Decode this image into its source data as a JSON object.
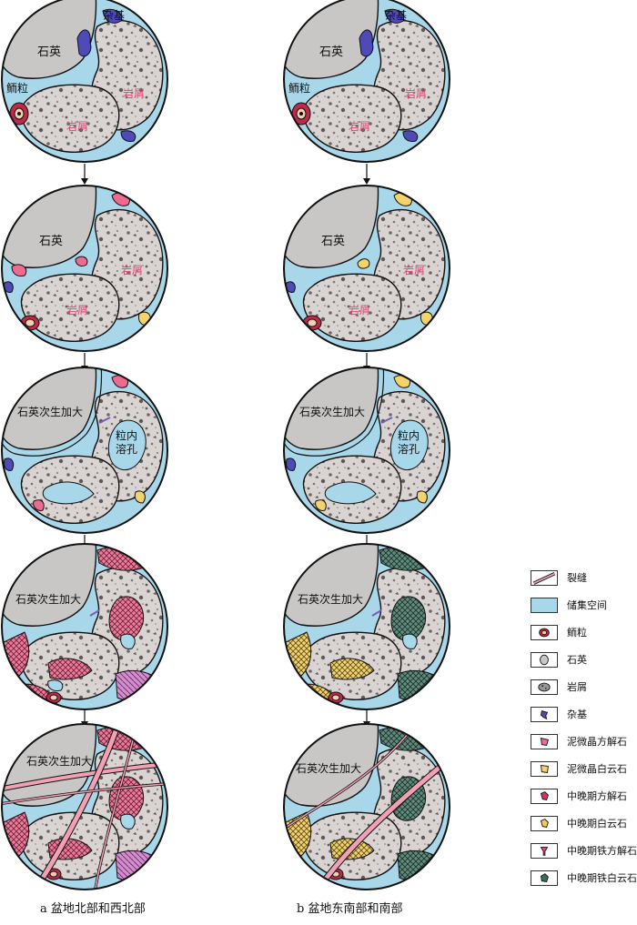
{
  "labels": {
    "quartz": "石英",
    "matrix": "杂基",
    "ooid": "鲕粒",
    "rock_fragment": "岩屑",
    "overgrowth": "石英次生加大",
    "dissolution_pore": "粒内\n溶孔"
  },
  "captions": {
    "left": "a 盆地北部和西北部",
    "right": "b 盆地东南部和南部"
  },
  "legend": [
    {
      "label": "裂缝",
      "swatch": "fracture",
      "color": "#f2a0b4"
    },
    {
      "label": "储集空间",
      "swatch": "pore",
      "color": "#a9d7ea"
    },
    {
      "label": "鲕粒",
      "swatch": "ooid",
      "color": "#b5294a"
    },
    {
      "label": "石英",
      "swatch": "quartz",
      "color": "#c9c6c6"
    },
    {
      "label": "岩屑",
      "swatch": "fragment",
      "color": "#9a9696"
    },
    {
      "label": "杂基",
      "swatch": "matrix",
      "color": "#4e4ab8"
    },
    {
      "label": "泥微晶方解石",
      "swatch": "micrite-calcite",
      "color": "#ee6a8f"
    },
    {
      "label": "泥微晶白云石",
      "swatch": "micrite-dolomite",
      "color": "#f4d36a"
    },
    {
      "label": "中晚期方解石",
      "swatch": "late-calcite",
      "color": "#c93a5c"
    },
    {
      "label": "中晚期白云石",
      "swatch": "late-dolomite",
      "color": "#f3c860"
    },
    {
      "label": "中晚期铁方解石",
      "swatch": "ferroan-calcite",
      "color": "#d84c8c"
    },
    {
      "label": "中晚期铁白云石",
      "swatch": "ferroan-dolomite",
      "color": "#3d6b5e"
    }
  ],
  "colors": {
    "pore": "#a9d7ea",
    "quartz": "#c9c6c6",
    "fragment": "#d8d2d0",
    "matrix": "#4e4ab8",
    "micrite_calcite": "#ee6a8f",
    "micrite_dolomite": "#f4d36a",
    "cement_calcite": "#e27396",
    "cement_dolomite": "#f2d27a",
    "cement_ferro_dolomite": "#5f8a7a",
    "fracture": "#f2a0b4"
  }
}
